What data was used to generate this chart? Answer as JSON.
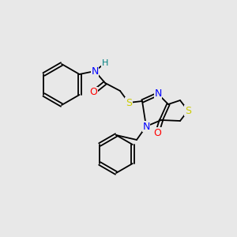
{
  "bg_color": "#e8e8e8",
  "bond_color": "#000000",
  "atom_colors": {
    "N": "#0000ff",
    "O": "#ff0000",
    "S": "#cccc00",
    "H": "#008080"
  },
  "font_size": 9,
  "bond_width": 1.3
}
